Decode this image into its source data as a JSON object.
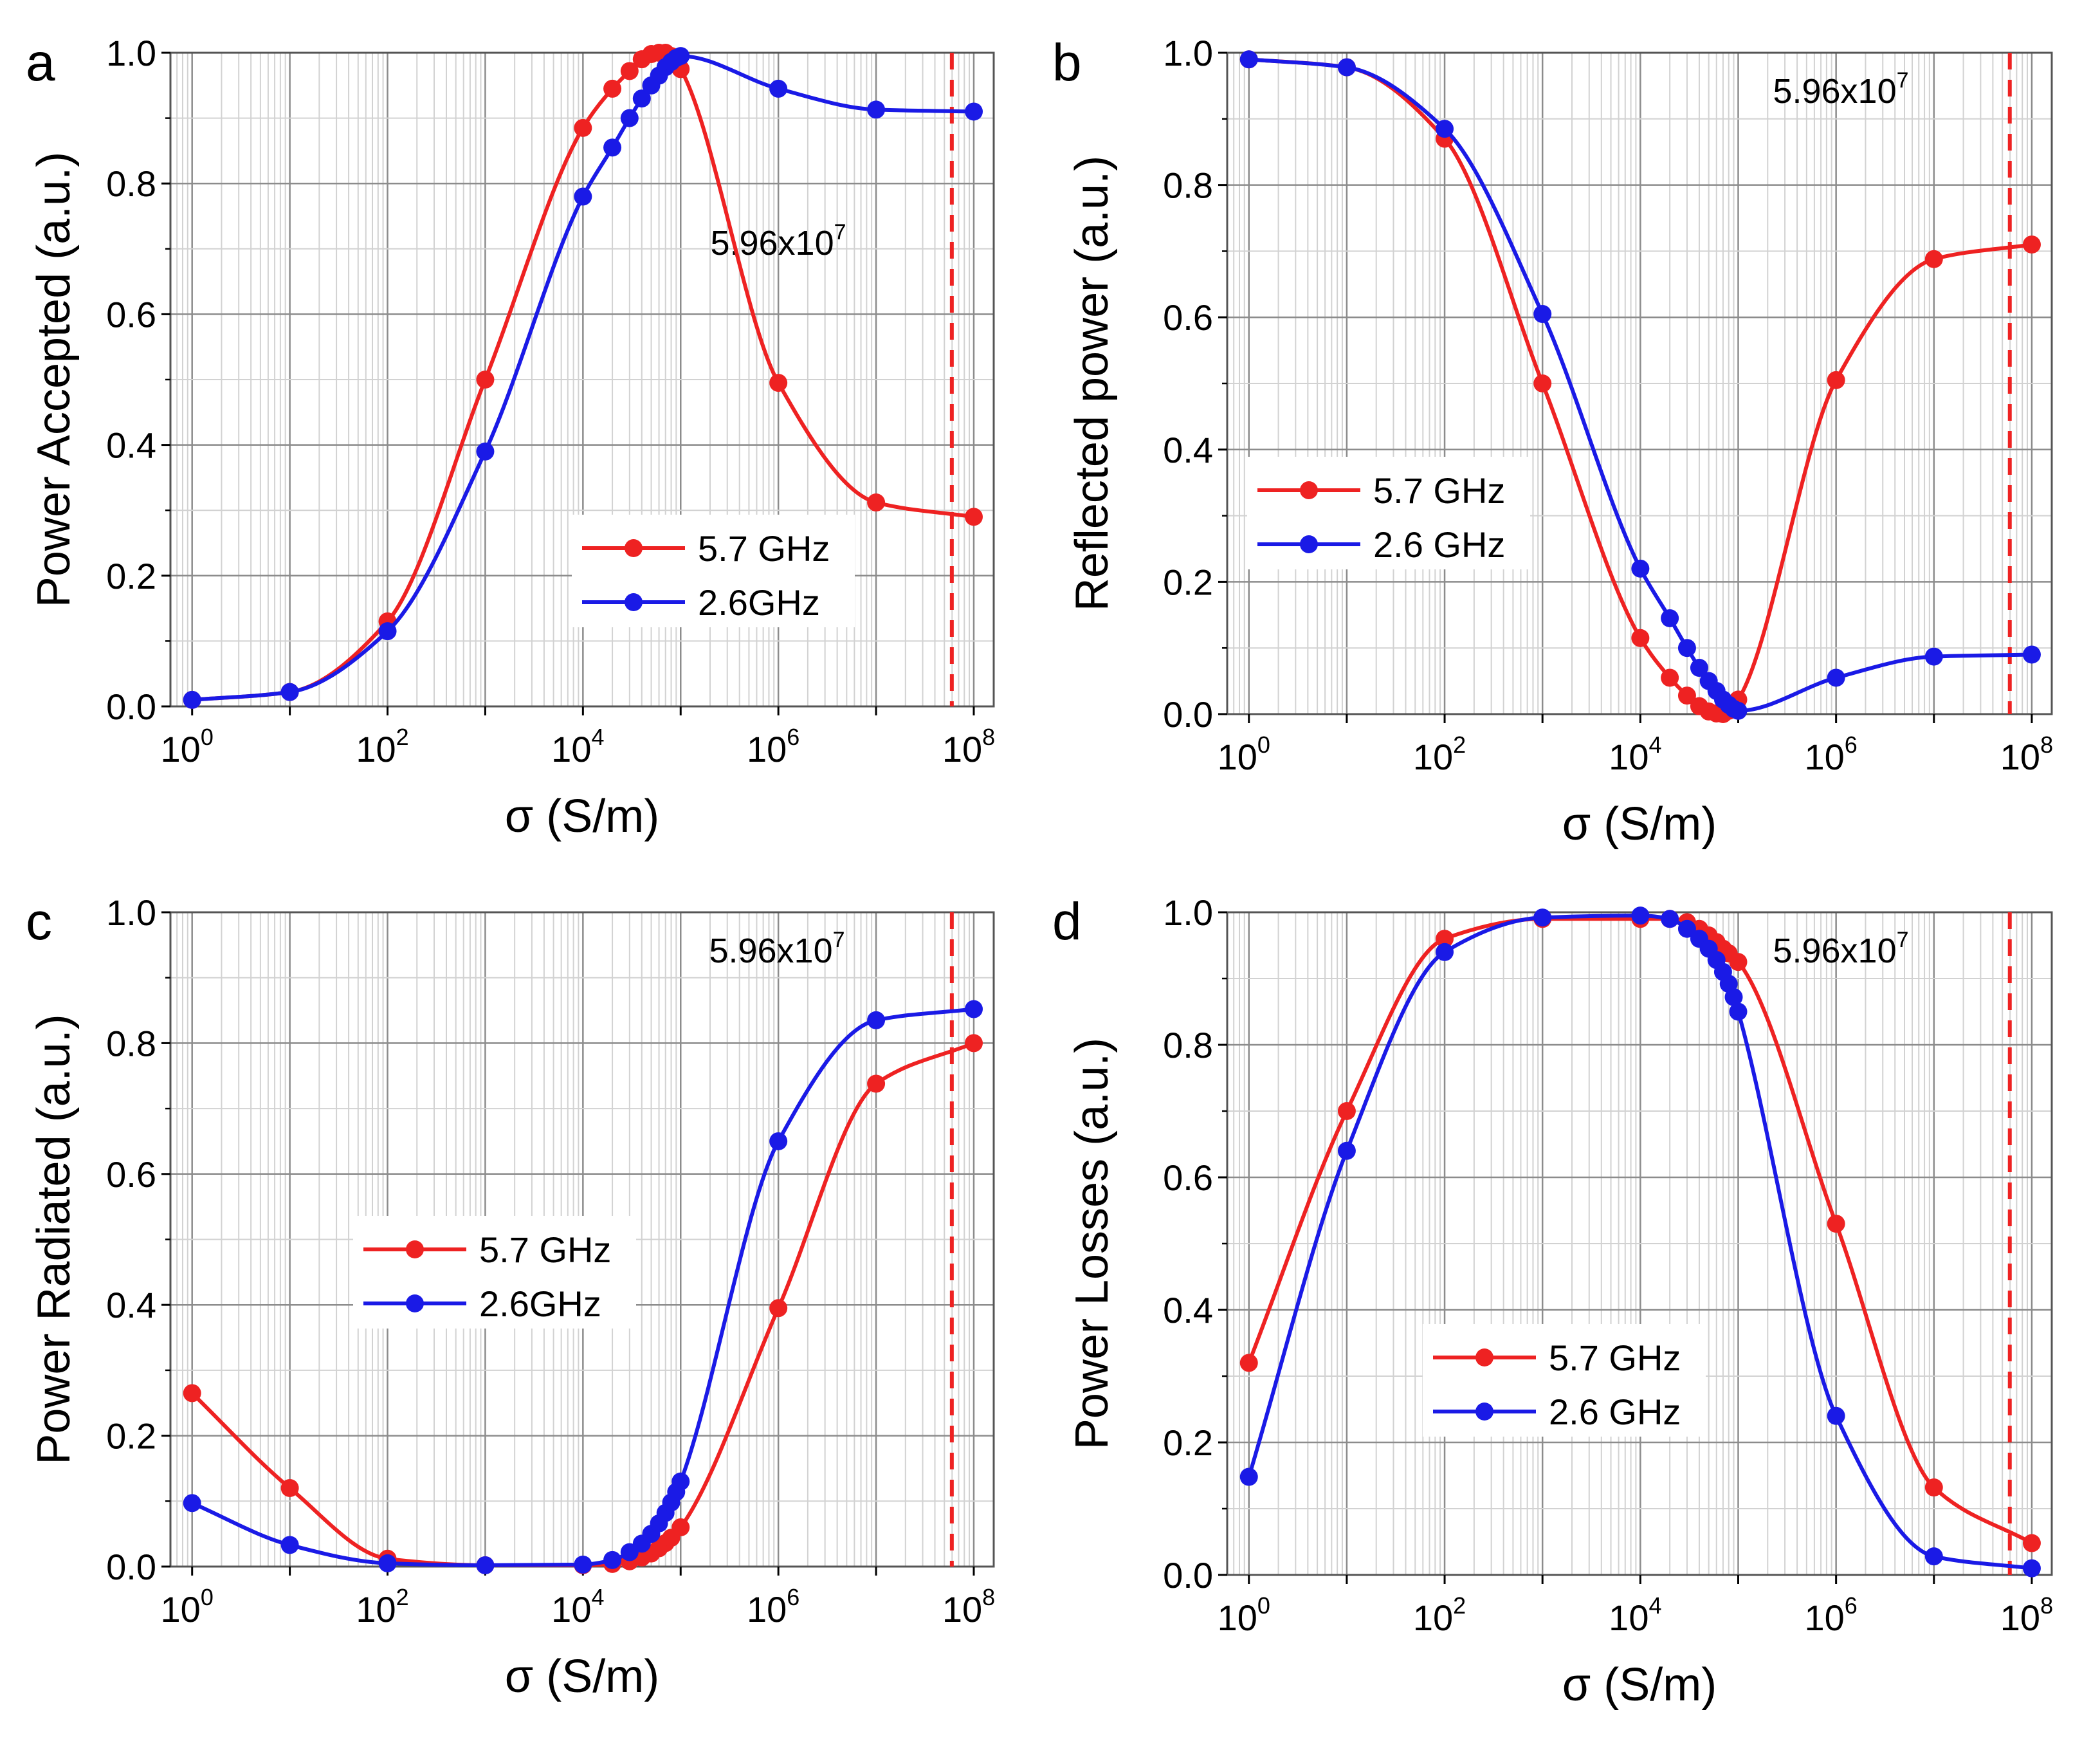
{
  "figure": {
    "colors": {
      "red": "#ee2222",
      "blue": "#1a1ae6",
      "grid_major": "#8c8c8c",
      "grid_minor": "#d2d2d2",
      "frame": "#555555"
    }
  },
  "chart_data": [
    {
      "panel": "a",
      "type": "line",
      "ylabel": "Power Accepted (a.u.)",
      "xlabel_symbol": "σ",
      "xlabel_unit": " (S/m)",
      "xscale": "log",
      "xlim": [
        0.6,
        160000000
      ],
      "ylim": [
        0,
        1
      ],
      "yticks": [
        "0.0",
        "0.2",
        "0.4",
        "0.6",
        "0.8",
        "1.0"
      ],
      "xticks": [
        "10",
        "10",
        "10",
        "10",
        "10"
      ],
      "xtick_exponents": [
        "0",
        "2",
        "4",
        "6",
        "8"
      ],
      "legend_position": "center-right",
      "vline": {
        "x": 59600000,
        "label": "5.96x10",
        "label_exponent": "7",
        "label_position": "upper-right-middle"
      },
      "series": [
        {
          "name": "5.7 GHz",
          "color": "red",
          "x": [
            1,
            10,
            100,
            1000,
            10000,
            20000,
            30000,
            40000,
            50000,
            60000,
            70000,
            80000,
            100000,
            1000000,
            10000000,
            100000000
          ],
          "y": [
            0.01,
            0.022,
            0.13,
            0.5,
            0.885,
            0.945,
            0.972,
            0.99,
            0.998,
            1.0,
            1.0,
            0.995,
            0.975,
            0.495,
            0.312,
            0.29
          ]
        },
        {
          "name": "2.6GHz",
          "color": "blue",
          "x": [
            1,
            10,
            100,
            1000,
            10000,
            20000,
            30000,
            40000,
            50000,
            60000,
            70000,
            80000,
            90000,
            100000,
            1000000,
            10000000,
            100000000
          ],
          "y": [
            0.01,
            0.022,
            0.115,
            0.39,
            0.78,
            0.855,
            0.9,
            0.93,
            0.95,
            0.965,
            0.978,
            0.986,
            0.992,
            0.995,
            0.945,
            0.913,
            0.91
          ]
        }
      ]
    },
    {
      "panel": "b",
      "type": "line",
      "ylabel": "Reflected power (a.u.)",
      "xlabel_symbol": "σ",
      "xlabel_unit": " (S/m)",
      "xscale": "log",
      "xlim": [
        0.6,
        160000000
      ],
      "ylim": [
        0,
        1
      ],
      "yticks": [
        "0.0",
        "0.2",
        "0.4",
        "0.6",
        "0.8",
        "1.0"
      ],
      "xticks": [
        "10",
        "10",
        "10",
        "10",
        "10"
      ],
      "xtick_exponents": [
        "0",
        "2",
        "4",
        "6",
        "8"
      ],
      "legend_position": "center-left",
      "vline": {
        "x": 59600000,
        "label": "5.96x10",
        "label_exponent": "7",
        "label_position": "top-right"
      },
      "series": [
        {
          "name": "5.7 GHz",
          "color": "red",
          "x": [
            1,
            10,
            100,
            1000,
            10000,
            20000,
            30000,
            40000,
            50000,
            60000,
            70000,
            80000,
            100000,
            1000000,
            10000000,
            100000000
          ],
          "y": [
            0.99,
            0.978,
            0.87,
            0.5,
            0.115,
            0.055,
            0.028,
            0.012,
            0.004,
            0.001,
            0.0,
            0.005,
            0.022,
            0.505,
            0.688,
            0.71
          ]
        },
        {
          "name": "2.6 GHz",
          "color": "blue",
          "x": [
            1,
            10,
            100,
            1000,
            10000,
            20000,
            30000,
            40000,
            50000,
            60000,
            70000,
            80000,
            90000,
            100000,
            1000000,
            10000000,
            100000000
          ],
          "y": [
            0.99,
            0.978,
            0.885,
            0.605,
            0.22,
            0.145,
            0.1,
            0.07,
            0.05,
            0.035,
            0.022,
            0.014,
            0.008,
            0.005,
            0.055,
            0.087,
            0.09
          ]
        }
      ]
    },
    {
      "panel": "c",
      "type": "line",
      "ylabel": "Power Radiated (a.u.)",
      "xlabel_symbol": "σ",
      "xlabel_unit": " (S/m)",
      "xscale": "log",
      "xlim": [
        0.6,
        160000000
      ],
      "ylim": [
        0,
        1
      ],
      "yticks": [
        "0.0",
        "0.2",
        "0.4",
        "0.6",
        "0.8",
        "1.0"
      ],
      "xticks": [
        "10",
        "10",
        "10",
        "10",
        "10"
      ],
      "xtick_exponents": [
        "0",
        "2",
        "4",
        "6",
        "8"
      ],
      "legend_position": "center-left",
      "vline": {
        "x": 59600000,
        "label": "5.96x10",
        "label_exponent": "7",
        "label_position": "top-right"
      },
      "series": [
        {
          "name": "5.7 GHz",
          "color": "red",
          "x": [
            1,
            10,
            100,
            1000,
            10000,
            20000,
            30000,
            40000,
            50000,
            60000,
            70000,
            80000,
            100000,
            1000000,
            10000000,
            100000000
          ],
          "y": [
            0.265,
            0.12,
            0.012,
            0.002,
            0.002,
            0.004,
            0.008,
            0.014,
            0.02,
            0.028,
            0.036,
            0.044,
            0.06,
            0.395,
            0.738,
            0.8
          ]
        },
        {
          "name": "2.6GHz",
          "color": "blue",
          "x": [
            1,
            10,
            100,
            1000,
            10000,
            20000,
            30000,
            40000,
            50000,
            60000,
            70000,
            80000,
            90000,
            100000,
            1000000,
            10000000,
            100000000
          ],
          "y": [
            0.097,
            0.033,
            0.005,
            0.002,
            0.003,
            0.01,
            0.022,
            0.035,
            0.05,
            0.066,
            0.082,
            0.098,
            0.114,
            0.13,
            0.65,
            0.835,
            0.852
          ]
        }
      ]
    },
    {
      "panel": "d",
      "type": "line",
      "ylabel": "Power Losses (a.u.)",
      "xlabel_symbol": "σ",
      "xlabel_unit": " (S/m)",
      "xscale": "log",
      "xlim": [
        0.6,
        160000000
      ],
      "ylim": [
        0,
        1
      ],
      "yticks": [
        "0.0",
        "0.2",
        "0.4",
        "0.6",
        "0.8",
        "1.0"
      ],
      "xticks": [
        "10",
        "10",
        "10",
        "10",
        "10"
      ],
      "xtick_exponents": [
        "0",
        "2",
        "4",
        "6",
        "8"
      ],
      "legend_position": "lower-center",
      "vline": {
        "x": 59600000,
        "label": "5.96x10",
        "label_exponent": "7",
        "label_position": "top-right"
      },
      "series": [
        {
          "name": "5.7 GHz",
          "color": "red",
          "x": [
            1,
            10,
            100,
            1000,
            10000,
            20000,
            30000,
            40000,
            50000,
            60000,
            70000,
            80000,
            100000,
            1000000,
            10000000,
            100000000
          ],
          "y": [
            0.32,
            0.7,
            0.96,
            0.99,
            0.99,
            0.99,
            0.985,
            0.975,
            0.965,
            0.955,
            0.945,
            0.938,
            0.925,
            0.53,
            0.132,
            0.048
          ]
        },
        {
          "name": "2.6 GHz",
          "color": "blue",
          "x": [
            1,
            10,
            100,
            1000,
            10000,
            20000,
            30000,
            40000,
            50000,
            60000,
            70000,
            80000,
            90000,
            100000,
            1000000,
            10000000,
            100000000
          ],
          "y": [
            0.148,
            0.64,
            0.94,
            0.992,
            0.995,
            0.99,
            0.975,
            0.96,
            0.945,
            0.928,
            0.91,
            0.892,
            0.872,
            0.85,
            0.24,
            0.028,
            0.01
          ]
        }
      ]
    }
  ]
}
